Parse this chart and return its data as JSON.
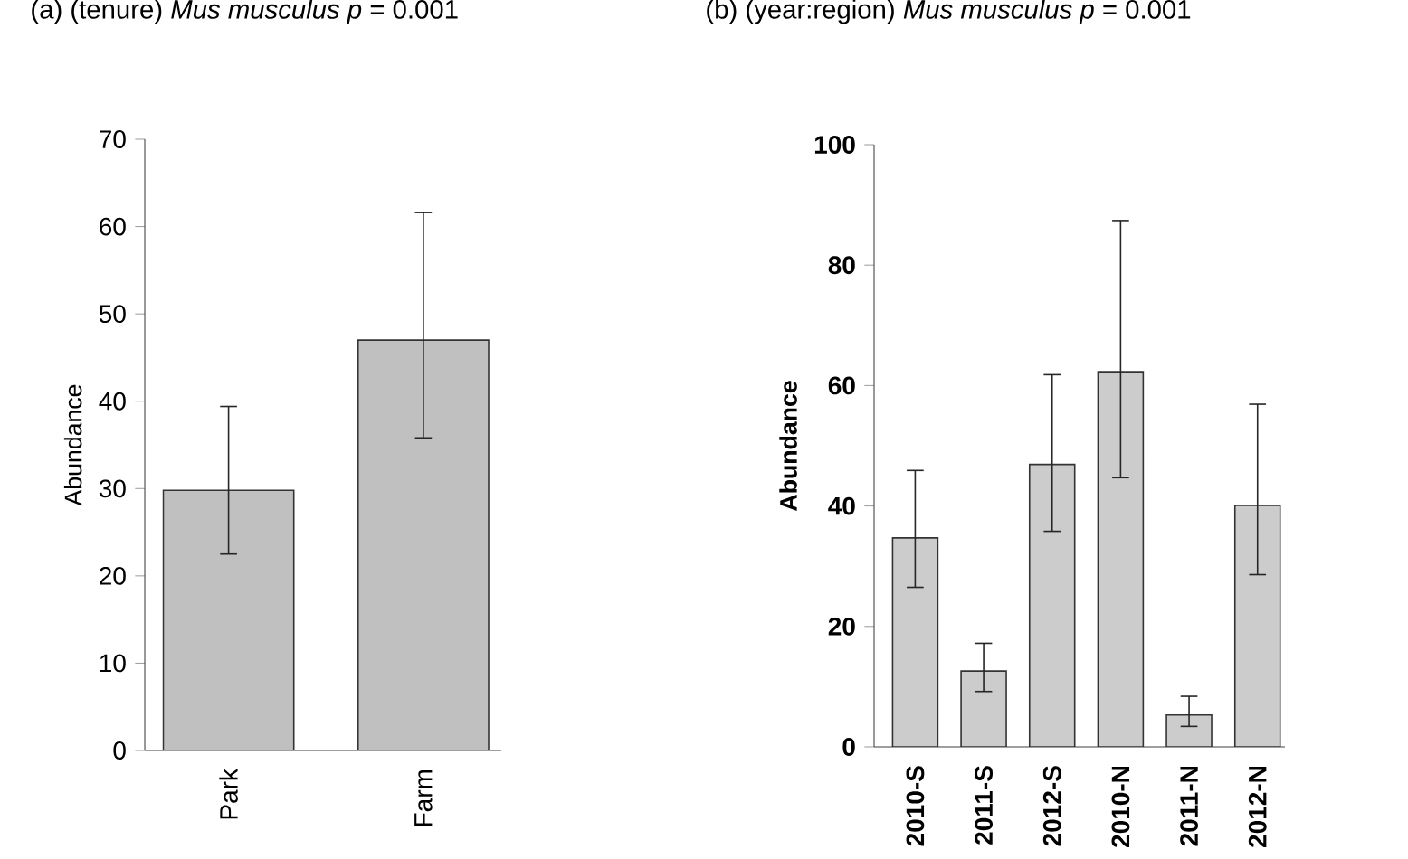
{
  "chart_data": [
    {
      "type": "bar",
      "title": "(a) (tenure) *Mus musculus*   *p* = 0.001",
      "ylabel": "Abundance",
      "categories": [
        "Park",
        "Farm"
      ],
      "values": [
        29.8,
        47
      ],
      "errors": [
        [
          22.5,
          39.4
        ],
        [
          35.8,
          61.6
        ]
      ],
      "color": "#c0c0c0",
      "ylim": [
        0,
        70
      ],
      "yticks": [
        0,
        10,
        20,
        30,
        40,
        50,
        60,
        70
      ],
      "grid": false,
      "legend": false
    },
    {
      "type": "bar",
      "title": "(b) (year:region) *Mus musculus*   *p* = 0.001",
      "ylabel": "Abundance",
      "categories": [
        "2010-S",
        "2011-S",
        "2012-S",
        "2010-N",
        "2011-N",
        "2012-N"
      ],
      "values": [
        34.7,
        12.6,
        46.9,
        62.3,
        5.3,
        40.1
      ],
      "errors": [
        [
          26.5,
          45.9
        ],
        [
          9.2,
          17.2
        ],
        [
          35.8,
          61.8
        ],
        [
          44.7,
          87.4
        ],
        [
          3.4,
          8.4
        ],
        [
          28.6,
          56.9
        ]
      ],
      "color": "#cccccc",
      "ylim": [
        0,
        100
      ],
      "yticks": [
        0,
        20,
        40,
        60,
        80,
        100
      ],
      "grid": false,
      "legend": false
    }
  ]
}
